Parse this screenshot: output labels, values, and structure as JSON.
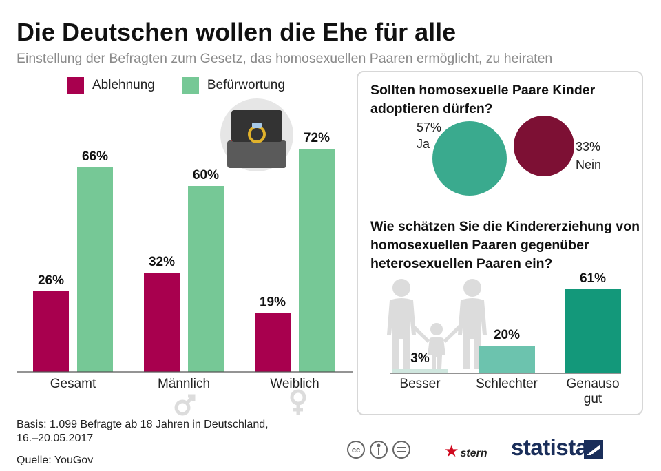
{
  "header": {
    "title": "Die Deutschen wollen die Ehe für alle",
    "subtitle": "Einstellung der Befragten zum Gesetz, das homosexuellen Paaren ermöglicht, zu heiraten"
  },
  "colors": {
    "ablehnung": "#a8004e",
    "befuerwortung": "#76c896",
    "ja": "#3aaa8e",
    "nein": "#7d1034",
    "besser": "#cfe6de",
    "schlechter": "#6cc3ae",
    "genauso": "#13987a",
    "icon_grey": "#d7d7d7"
  },
  "chart_data": [
    {
      "type": "bar",
      "categories": [
        "Gesamt",
        "Männlich",
        "Weiblich"
      ],
      "series": [
        {
          "name": "Ablehnung",
          "values": [
            26,
            32,
            19
          ],
          "labels": [
            "26%",
            "32%",
            "19%"
          ]
        },
        {
          "name": "Befürwortung",
          "values": [
            66,
            60,
            72
          ],
          "labels": [
            "66%",
            "60%",
            "72%"
          ]
        }
      ],
      "ylim": [
        0,
        80
      ],
      "legend": "top-left"
    },
    {
      "type": "pie",
      "title": "Sollten homosexuelle Paare Kinder adoptieren dürfen?",
      "categories": [
        "Ja",
        "Nein"
      ],
      "values": [
        57,
        33
      ],
      "labels": [
        "57%",
        "33%"
      ]
    },
    {
      "type": "bar",
      "title": "Wie schätzen Sie die Kindererziehung von homosexuellen Paaren gegenüber heterosexuellen Paaren ein?",
      "categories": [
        "Besser",
        "Schlechter",
        "Genauso gut"
      ],
      "category_lines": [
        [
          "Besser"
        ],
        [
          "Schlechter"
        ],
        [
          "Genauso",
          "gut"
        ]
      ],
      "values": [
        3,
        20,
        61
      ],
      "labels": [
        "3%",
        "20%",
        "61%"
      ],
      "ylim": [
        0,
        64
      ]
    }
  ],
  "footer": {
    "basis_line1": "Basis: 1.099 Befragte ab 18 Jahren in Deutschland,",
    "basis_line2": "16.–20.05.2017",
    "source": "Quelle: YouGov",
    "cc": "cc",
    "stern": "stern",
    "statista": "statista"
  }
}
